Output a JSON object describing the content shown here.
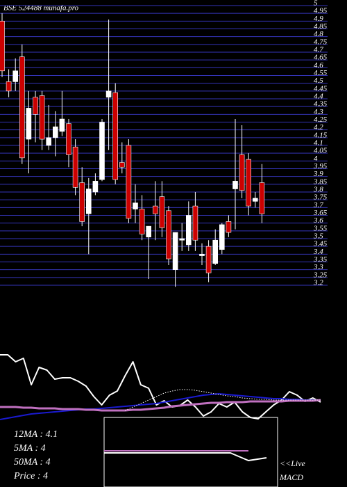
{
  "chart_data": [
    {
      "type": "candlestick",
      "title": "BSE 524488 munafa.pro",
      "ylim": [
        3.2,
        5.0
      ],
      "yticks": [
        3.2,
        3.25,
        3.3,
        3.35,
        3.4,
        3.45,
        3.5,
        3.55,
        3.6,
        3.65,
        3.7,
        3.75,
        3.8,
        3.85,
        3.9,
        3.95,
        4,
        4.05,
        4.1,
        4.15,
        4.2,
        4.25,
        4.3,
        4.35,
        4.4,
        4.45,
        4.5,
        4.55,
        4.6,
        4.65,
        4.7,
        4.75,
        4.8,
        4.85,
        4.9,
        4.95,
        5
      ],
      "grid": true,
      "grid_color": "#3434b8",
      "up_color": "#ffffff",
      "down_color": "#cc0000",
      "open": [
        4.9,
        4.51,
        4.51,
        4.67,
        4.14,
        4.41,
        4.42,
        4.1,
        4.15,
        4.19,
        4.24,
        4.09,
        3.86,
        3.66,
        3.8,
        3.88,
        4.41,
        4.44,
        3.99,
        4.1,
        3.69,
        3.69,
        3.51,
        3.71,
        3.77,
        3.68,
        3.3,
        3.49,
        3.46,
        3.71,
        3.39,
        3.45,
        3.34,
        3.43,
        3.61,
        3.82,
        4.04,
        4.01,
        3.74,
        3.86
      ],
      "high": [
        4.95,
        4.59,
        4.66,
        4.75,
        4.45,
        4.45,
        4.45,
        4.36,
        4.32,
        4.45,
        4.27,
        4.14,
        3.96,
        3.89,
        3.92,
        4.27,
        4.91,
        4.5,
        4.12,
        4.14,
        3.85,
        3.78,
        3.58,
        3.87,
        3.87,
        3.71,
        3.54,
        3.6,
        3.74,
        3.8,
        3.47,
        3.49,
        3.56,
        3.6,
        3.65,
        4.27,
        4.23,
        4.05,
        3.8,
        3.98
      ],
      "low": [
        4.54,
        4.41,
        4.45,
        3.98,
        3.92,
        4.12,
        4.07,
        4.07,
        4.03,
        4.16,
        3.96,
        3.78,
        3.58,
        3.4,
        3.78,
        3.87,
        4.07,
        3.85,
        3.92,
        3.6,
        3.6,
        3.49,
        3.24,
        3.49,
        3.51,
        3.33,
        3.19,
        3.42,
        3.42,
        3.42,
        3.33,
        3.22,
        3.33,
        3.4,
        3.51,
        3.56,
        3.76,
        3.65,
        3.7,
        3.6
      ],
      "close": [
        4.58,
        4.45,
        4.58,
        4.02,
        4.34,
        4.3,
        4.14,
        4.15,
        4.22,
        4.27,
        4.04,
        3.83,
        3.61,
        3.82,
        3.87,
        4.25,
        4.45,
        3.88,
        3.96,
        3.63,
        3.73,
        3.53,
        3.58,
        3.66,
        3.57,
        3.37,
        3.54,
        3.5,
        3.65,
        3.49,
        3.4,
        3.28,
        3.49,
        3.59,
        3.54,
        3.87,
        3.81,
        3.71,
        3.76,
        3.66
      ]
    },
    {
      "type": "line",
      "categories": [
        null,
        null,
        null,
        null,
        null,
        null,
        null,
        null,
        null,
        null,
        null,
        null,
        null,
        null,
        null,
        null,
        null,
        null,
        null,
        null,
        null,
        null,
        null,
        null,
        null,
        null,
        null,
        null,
        null,
        null,
        null,
        null,
        null,
        null,
        null,
        null,
        null,
        null,
        null,
        null,
        null,
        null
      ],
      "ylim": [
        0,
        100
      ],
      "labels": [
        "12MA : 4.1",
        "5MA : 4",
        "50MA : 4",
        "Price  : 4"
      ],
      "series": [
        {
          "color": "#ffffff",
          "width": 2,
          "style": "solid",
          "values": [
            95,
            95,
            85,
            90,
            52,
            77,
            73,
            60,
            62,
            62,
            57,
            50,
            35,
            23,
            37,
            43,
            65,
            85,
            52,
            47,
            23,
            29,
            20,
            22,
            30,
            20,
            7,
            13,
            25,
            20,
            27,
            13,
            5,
            3,
            13,
            23,
            30,
            42,
            37,
            28,
            33,
            27
          ]
        },
        {
          "color": "#1a1ad0",
          "width": 2,
          "style": "solid",
          "values": [
            2,
            4,
            6,
            8,
            10,
            11,
            12,
            13,
            14,
            15,
            16,
            17,
            17,
            18,
            19,
            20,
            21,
            22,
            23,
            24,
            25,
            27,
            29,
            31,
            33,
            35,
            37,
            38,
            39,
            38,
            37,
            36,
            35,
            34,
            33,
            32,
            32,
            31,
            31,
            30,
            30,
            30
          ]
        },
        {
          "color": "#c070c0",
          "width": 3,
          "style": "solid",
          "values": [
            20,
            20,
            20,
            19,
            19,
            18,
            18,
            18,
            17,
            17,
            17,
            16,
            16,
            15,
            15,
            15,
            15,
            16,
            16,
            17,
            18,
            19,
            21,
            22,
            23,
            24,
            25,
            26,
            26,
            27,
            27,
            27,
            28,
            28,
            28,
            28,
            28,
            29,
            29,
            29,
            29,
            30
          ]
        },
        {
          "color": "#ffffff",
          "width": 1,
          "style": "dotted",
          "values": [
            null,
            null,
            null,
            null,
            null,
            null,
            null,
            null,
            null,
            null,
            null,
            null,
            null,
            null,
            null,
            null,
            15,
            20,
            25,
            30,
            35,
            40,
            43,
            45,
            45,
            44,
            42,
            40,
            38,
            36,
            35,
            33,
            32,
            31,
            31,
            30,
            30,
            30,
            30,
            30,
            30,
            30
          ]
        }
      ]
    },
    {
      "type": "line",
      "title": "MACD",
      "live_label": "<<Live",
      "categories": [
        null,
        null,
        null,
        null,
        null,
        null,
        null,
        null,
        null,
        null
      ],
      "ylim": [
        -50,
        50
      ],
      "series": [
        {
          "color": "#ffffff",
          "width": 2,
          "style": "solid",
          "values": [
            -1,
            -1,
            -1,
            -1,
            -1,
            -1,
            -1,
            -1,
            -12,
            -8
          ]
        },
        {
          "color": "#c070c0",
          "width": 2,
          "style": "solid",
          "values": [
            2,
            2,
            2,
            2,
            2,
            2,
            2,
            2,
            2,
            null
          ]
        }
      ]
    }
  ]
}
